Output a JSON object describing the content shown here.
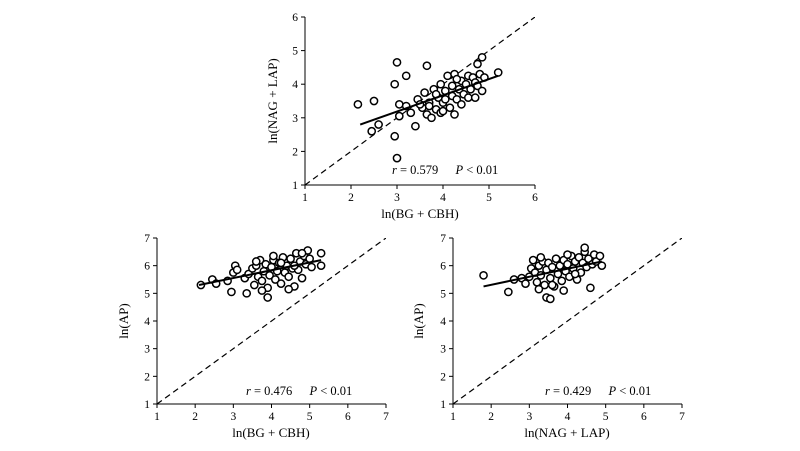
{
  "chart_data": [
    {
      "type": "scatter",
      "xlabel": "ln(BG + CBH)",
      "ylabel": "ln(NAG + LAP)",
      "xlim": [
        1,
        6
      ],
      "ylim": [
        1,
        6
      ],
      "xticks": [
        "1",
        "2",
        "3",
        "4",
        "5",
        "6"
      ],
      "yticks": [
        "1",
        "2",
        "3",
        "4",
        "5",
        "6"
      ],
      "stat_r_label": "r",
      "stat_r_value": " = 0.579",
      "stat_p_label": "P",
      "stat_p_value": " < 0.01",
      "fit_line": {
        "x": [
          2.2,
          5.2
        ],
        "y": [
          2.8,
          4.25
        ]
      },
      "identity_line": true,
      "points": [
        [
          2.15,
          3.4
        ],
        [
          2.5,
          3.5
        ],
        [
          2.6,
          2.8
        ],
        [
          2.45,
          2.6
        ],
        [
          3.0,
          4.65
        ],
        [
          3.2,
          4.25
        ],
        [
          3.65,
          4.55
        ],
        [
          2.95,
          4.0
        ],
        [
          3.05,
          3.05
        ],
        [
          2.95,
          2.45
        ],
        [
          3.0,
          1.8
        ],
        [
          3.05,
          3.4
        ],
        [
          3.2,
          3.35
        ],
        [
          3.3,
          3.15
        ],
        [
          3.4,
          2.75
        ],
        [
          3.45,
          3.55
        ],
        [
          3.55,
          3.3
        ],
        [
          3.6,
          3.75
        ],
        [
          3.65,
          3.1
        ],
        [
          3.7,
          3.45
        ],
        [
          3.75,
          3.0
        ],
        [
          3.8,
          3.85
        ],
        [
          3.85,
          3.25
        ],
        [
          3.9,
          3.6
        ],
        [
          3.95,
          4.0
        ],
        [
          3.95,
          3.15
        ],
        [
          4.0,
          3.45
        ],
        [
          4.05,
          3.8
        ],
        [
          4.05,
          3.55
        ],
        [
          4.1,
          4.25
        ],
        [
          4.15,
          3.3
        ],
        [
          4.2,
          3.65
        ],
        [
          4.2,
          3.95
        ],
        [
          4.25,
          3.1
        ],
        [
          4.25,
          4.3
        ],
        [
          4.3,
          3.55
        ],
        [
          4.35,
          3.85
        ],
        [
          4.4,
          4.1
        ],
        [
          4.4,
          3.4
        ],
        [
          4.45,
          3.7
        ],
        [
          4.5,
          4.0
        ],
        [
          4.55,
          3.6
        ],
        [
          4.55,
          4.25
        ],
        [
          4.6,
          3.85
        ],
        [
          4.65,
          4.2
        ],
        [
          4.7,
          4.05
        ],
        [
          4.7,
          3.6
        ],
        [
          4.75,
          3.95
        ],
        [
          4.8,
          4.3
        ],
        [
          4.85,
          3.8
        ],
        [
          4.9,
          4.2
        ],
        [
          4.75,
          4.6
        ],
        [
          4.85,
          4.8
        ],
        [
          5.2,
          4.35
        ],
        [
          3.5,
          3.4
        ],
        [
          3.85,
          3.7
        ],
        [
          4.0,
          3.2
        ],
        [
          4.3,
          4.15
        ],
        [
          3.7,
          3.35
        ]
      ]
    },
    {
      "type": "scatter",
      "xlabel": "ln(BG + CBH)",
      "ylabel": "ln(AP)",
      "xlim": [
        1,
        7
      ],
      "ylim": [
        1,
        7
      ],
      "xticks": [
        "1",
        "2",
        "3",
        "4",
        "5",
        "6",
        "7"
      ],
      "yticks": [
        "1",
        "2",
        "3",
        "4",
        "5",
        "6",
        "7"
      ],
      "stat_r_label": "r",
      "stat_r_value": " = 0.476",
      "stat_p_label": "P",
      "stat_p_value": " < 0.01",
      "fit_line": {
        "x": [
          2.1,
          5.3
        ],
        "y": [
          5.3,
          6.2
        ]
      },
      "identity_line": true,
      "points": [
        [
          2.15,
          5.3
        ],
        [
          2.45,
          5.5
        ],
        [
          2.55,
          5.35
        ],
        [
          2.85,
          5.45
        ],
        [
          2.95,
          5.05
        ],
        [
          3.0,
          5.75
        ],
        [
          3.05,
          6.0
        ],
        [
          3.1,
          5.85
        ],
        [
          3.3,
          5.55
        ],
        [
          3.35,
          5.0
        ],
        [
          3.4,
          5.7
        ],
        [
          3.5,
          5.9
        ],
        [
          3.55,
          5.3
        ],
        [
          3.6,
          6.0
        ],
        [
          3.65,
          5.6
        ],
        [
          3.7,
          6.2
        ],
        [
          3.75,
          5.45
        ],
        [
          3.8,
          5.8
        ],
        [
          3.85,
          6.05
        ],
        [
          3.9,
          5.2
        ],
        [
          3.95,
          5.65
        ],
        [
          4.0,
          5.95
        ],
        [
          4.05,
          6.2
        ],
        [
          4.1,
          5.5
        ],
        [
          4.15,
          5.8
        ],
        [
          4.2,
          6.1
        ],
        [
          4.25,
          5.35
        ],
        [
          4.3,
          6.3
        ],
        [
          4.35,
          5.75
        ],
        [
          4.4,
          6.0
        ],
        [
          4.45,
          5.6
        ],
        [
          4.5,
          6.25
        ],
        [
          4.55,
          5.9
        ],
        [
          4.6,
          5.25
        ],
        [
          4.65,
          6.45
        ],
        [
          4.7,
          5.85
        ],
        [
          4.75,
          6.15
        ],
        [
          4.8,
          5.55
        ],
        [
          4.85,
          6.35
        ],
        [
          4.9,
          6.05
        ],
        [
          4.95,
          6.55
        ],
        [
          5.0,
          6.25
        ],
        [
          5.05,
          5.95
        ],
        [
          5.3,
          6.0
        ],
        [
          5.3,
          6.45
        ],
        [
          3.9,
          4.85
        ],
        [
          4.05,
          6.35
        ],
        [
          4.6,
          6.0
        ],
        [
          3.6,
          6.15
        ],
        [
          3.75,
          5.1
        ],
        [
          4.25,
          6.1
        ],
        [
          4.45,
          5.15
        ],
        [
          4.8,
          6.45
        ]
      ]
    },
    {
      "type": "scatter",
      "xlabel": "ln(NAG + LAP)",
      "ylabel": "ln(AP)",
      "xlim": [
        1,
        7
      ],
      "ylim": [
        1,
        7
      ],
      "xticks": [
        "1",
        "2",
        "3",
        "4",
        "5",
        "6",
        "7"
      ],
      "yticks": [
        "1",
        "2",
        "3",
        "4",
        "5",
        "6",
        "7"
      ],
      "stat_r_label": "r",
      "stat_r_value": " = 0.429",
      "stat_p_label": "P",
      "stat_p_value": " < 0.01",
      "fit_line": {
        "x": [
          1.8,
          4.9
        ],
        "y": [
          5.25,
          6.15
        ]
      },
      "identity_line": true,
      "points": [
        [
          1.8,
          5.65
        ],
        [
          2.45,
          5.05
        ],
        [
          2.6,
          5.5
        ],
        [
          2.8,
          5.55
        ],
        [
          2.9,
          5.35
        ],
        [
          3.0,
          5.6
        ],
        [
          3.05,
          5.9
        ],
        [
          3.1,
          6.2
        ],
        [
          3.15,
          5.75
        ],
        [
          3.2,
          5.4
        ],
        [
          3.25,
          6.0
        ],
        [
          3.3,
          5.65
        ],
        [
          3.35,
          6.15
        ],
        [
          3.4,
          5.3
        ],
        [
          3.45,
          5.85
        ],
        [
          3.5,
          6.1
        ],
        [
          3.55,
          5.55
        ],
        [
          3.6,
          5.95
        ],
        [
          3.65,
          5.25
        ],
        [
          3.7,
          6.25
        ],
        [
          3.75,
          5.7
        ],
        [
          3.8,
          6.0
        ],
        [
          3.85,
          5.45
        ],
        [
          3.9,
          6.2
        ],
        [
          3.95,
          5.8
        ],
        [
          4.0,
          6.05
        ],
        [
          4.05,
          5.6
        ],
        [
          4.1,
          6.35
        ],
        [
          4.15,
          5.9
        ],
        [
          4.2,
          6.15
        ],
        [
          4.25,
          5.5
        ],
        [
          4.3,
          6.3
        ],
        [
          4.35,
          5.75
        ],
        [
          4.4,
          6.1
        ],
        [
          4.45,
          6.5
        ],
        [
          4.5,
          5.95
        ],
        [
          4.55,
          6.25
        ],
        [
          4.6,
          5.2
        ],
        [
          4.65,
          6.05
        ],
        [
          4.7,
          6.4
        ],
        [
          4.75,
          6.15
        ],
        [
          4.85,
          6.35
        ],
        [
          4.9,
          6.0
        ],
        [
          3.45,
          4.85
        ],
        [
          3.55,
          4.8
        ],
        [
          3.25,
          5.15
        ],
        [
          3.3,
          6.3
        ],
        [
          4.0,
          6.4
        ],
        [
          4.45,
          6.65
        ],
        [
          3.9,
          5.1
        ],
        [
          3.6,
          5.3
        ],
        [
          4.2,
          5.7
        ]
      ]
    }
  ]
}
